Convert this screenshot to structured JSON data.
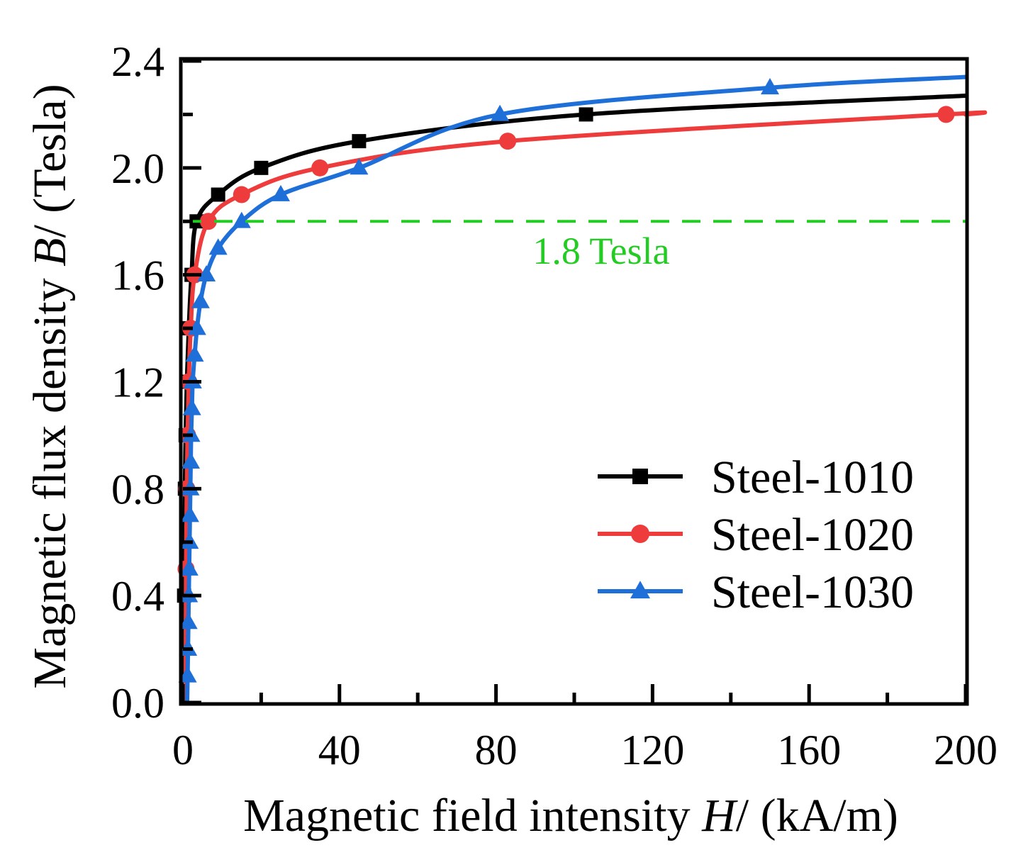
{
  "chart_data": {
    "type": "line",
    "xlabel": "Magnetic field intensity H/ (kA/m)",
    "xlabel_parts": {
      "pre": "Magnetic field intensity ",
      "var": "H",
      "post": "/ (kA/m)"
    },
    "ylabel": "Magnetic flux density B/ (Tesla)",
    "ylabel_parts": {
      "pre": "Magnetic flux density ",
      "var": "B",
      "post": "/ (Tesla)"
    },
    "xlim": [
      0,
      200
    ],
    "ylim": [
      0,
      2.4
    ],
    "xticks": [
      0,
      40,
      80,
      120,
      160,
      200
    ],
    "xtick_labels": [
      "0",
      "40",
      "80",
      "120",
      "160",
      "200"
    ],
    "yticks": [
      0,
      0.4,
      0.8,
      1.2,
      1.6,
      2.0,
      2.4
    ],
    "ytick_labels": [
      "0.0",
      "0.4",
      "0.8",
      "1.2",
      "1.6",
      "2.0",
      "2.4"
    ],
    "legend_position": "bottom-right",
    "reference_line": {
      "y": 1.8,
      "label": "1.8 Tesla",
      "color": "#22cc22"
    },
    "series": [
      {
        "name": "Steel-1010",
        "color": "#000000",
        "marker": "square",
        "x": [
          0.3,
          0.5,
          0.7,
          1.0,
          1.5,
          2.2,
          3.5,
          9,
          20,
          45,
          103
        ],
        "y": [
          0.4,
          0.8,
          1.0,
          1.2,
          1.4,
          1.6,
          1.8,
          1.9,
          2.0,
          2.1,
          2.2
        ],
        "curve_end": [
          200,
          2.27
        ]
      },
      {
        "name": "Steel-1020",
        "color": "#ee3b3b",
        "marker": "circle",
        "x": [
          0.8,
          1.0,
          1.2,
          1.5,
          2.0,
          3.0,
          6.5,
          15,
          35,
          83,
          195
        ],
        "y": [
          0.5,
          0.8,
          1.0,
          1.2,
          1.4,
          1.6,
          1.8,
          1.9,
          2.0,
          2.1,
          2.2
        ],
        "curve_end": [
          200,
          2.2
        ]
      },
      {
        "name": "Steel-1030",
        "color": "#1f6fd8",
        "marker": "triangle",
        "x": [
          1.2,
          1.3,
          1.4,
          1.5,
          1.6,
          1.7,
          1.8,
          1.9,
          2.0,
          2.1,
          2.3,
          2.5,
          3.0,
          3.6,
          4.5,
          6.0,
          9.0,
          15,
          25,
          45,
          81,
          150
        ],
        "y": [
          0.1,
          0.2,
          0.3,
          0.4,
          0.5,
          0.6,
          0.7,
          0.8,
          0.9,
          1.0,
          1.1,
          1.2,
          1.3,
          1.4,
          1.5,
          1.6,
          1.7,
          1.8,
          1.9,
          2.0,
          2.2,
          2.3
        ],
        "curve_end": [
          200,
          2.34
        ]
      }
    ]
  }
}
